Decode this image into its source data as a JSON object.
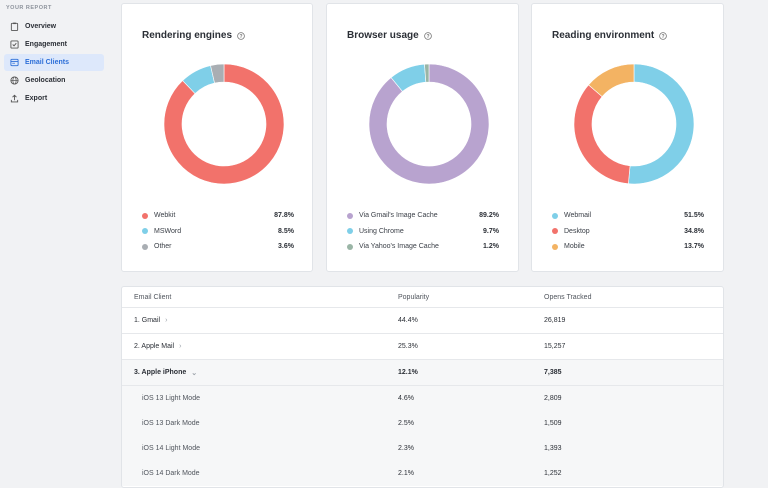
{
  "sidebar": {
    "heading": "YOUR REPORT",
    "items": [
      {
        "label": "Overview",
        "icon": "clipboard-icon",
        "active": false
      },
      {
        "label": "Engagement",
        "icon": "checkbox-icon",
        "active": false
      },
      {
        "label": "Email Clients",
        "icon": "window-icon",
        "active": true
      },
      {
        "label": "Geolocation",
        "icon": "globe-icon",
        "active": false
      },
      {
        "label": "Export",
        "icon": "upload-icon",
        "active": false
      }
    ]
  },
  "colors": {
    "accent": "#2d6fd8",
    "webkit": "#f2726b",
    "msword": "#7fcfe8",
    "other": "#a9aeb3",
    "gmail_cache": "#b8a3cf",
    "chrome": "#7fcfe8",
    "yahoo_cache": "#9ab5a6",
    "webmail": "#7fcfe8",
    "desktop": "#f2726b",
    "mobile": "#f3b363"
  },
  "cards": [
    {
      "title": "Rendering engines",
      "legend": [
        {
          "label": "Webkit",
          "value": "87.8%",
          "color": "#f2726b"
        },
        {
          "label": "MSWord",
          "value": "8.5%",
          "color": "#7fcfe8"
        },
        {
          "label": "Other",
          "value": "3.6%",
          "color": "#a9aeb3"
        }
      ]
    },
    {
      "title": "Browser usage",
      "legend": [
        {
          "label": "Via Gmail's Image Cache",
          "value": "89.2%",
          "color": "#b8a3cf"
        },
        {
          "label": "Using Chrome",
          "value": "9.7%",
          "color": "#7fcfe8"
        },
        {
          "label": "Via Yahoo's Image Cache",
          "value": "1.2%",
          "color": "#9ab5a6"
        }
      ]
    },
    {
      "title": "Reading environment",
      "legend": [
        {
          "label": "Webmail",
          "value": "51.5%",
          "color": "#7fcfe8"
        },
        {
          "label": "Desktop",
          "value": "34.8%",
          "color": "#f2726b"
        },
        {
          "label": "Mobile",
          "value": "13.7%",
          "color": "#f3b363"
        }
      ]
    }
  ],
  "chart_data": [
    {
      "type": "pie",
      "title": "Rendering engines",
      "categories": [
        "Webkit",
        "MSWord",
        "Other"
      ],
      "values": [
        87.8,
        8.5,
        3.6
      ]
    },
    {
      "type": "pie",
      "title": "Browser usage",
      "categories": [
        "Via Gmail's Image Cache",
        "Using Chrome",
        "Via Yahoo's Image Cache"
      ],
      "values": [
        89.2,
        9.7,
        1.2
      ]
    },
    {
      "type": "pie",
      "title": "Reading environment",
      "categories": [
        "Webmail",
        "Desktop",
        "Mobile"
      ],
      "values": [
        51.5,
        34.8,
        13.7
      ]
    }
  ],
  "table": {
    "headers": [
      "Email Client",
      "Popularity",
      "Opens Tracked"
    ],
    "rows": [
      {
        "client": "1. Gmail",
        "popularity": "44.4%",
        "opens": "26,819",
        "chevron": "›"
      },
      {
        "client": "2. Apple Mail",
        "popularity": "25.3%",
        "opens": "15,257",
        "chevron": "›"
      },
      {
        "client": "3. Apple iPhone",
        "popularity": "12.1%",
        "opens": "7,385",
        "chevron": "⌄"
      }
    ],
    "subrows": [
      {
        "client": "iOS 13 Light Mode",
        "popularity": "4.6%",
        "opens": "2,809"
      },
      {
        "client": "iOS 13 Dark Mode",
        "popularity": "2.5%",
        "opens": "1,509"
      },
      {
        "client": "iOS 14 Light Mode",
        "popularity": "2.3%",
        "opens": "1,393"
      },
      {
        "client": "iOS 14 Dark Mode",
        "popularity": "2.1%",
        "opens": "1,252"
      }
    ]
  }
}
